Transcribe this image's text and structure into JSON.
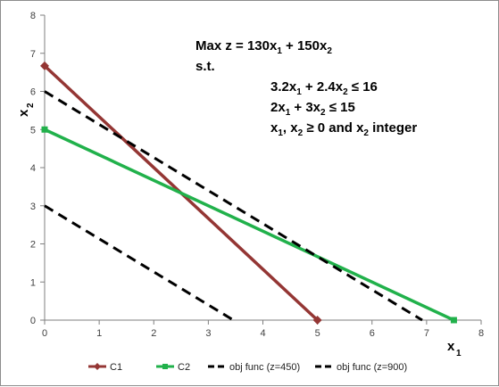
{
  "chart_data": {
    "type": "line",
    "xlim": [
      0,
      8
    ],
    "ylim": [
      0,
      8
    ],
    "x_ticks": [
      0,
      1,
      2,
      3,
      4,
      5,
      6,
      7,
      8
    ],
    "y_ticks": [
      0,
      1,
      2,
      3,
      4,
      5,
      6,
      7,
      8
    ],
    "xlabel": {
      "main": "x",
      "sub": "1"
    },
    "ylabel": {
      "main": "x",
      "sub": "2"
    },
    "grid": false,
    "legend_position": "bottom",
    "series": [
      {
        "name": "C1",
        "color": "#943634",
        "style": "solid",
        "marker": "diamond",
        "points": [
          [
            0,
            6.67
          ],
          [
            5,
            0
          ]
        ]
      },
      {
        "name": "C2",
        "color": "#21b14b",
        "style": "solid",
        "marker": "square",
        "points": [
          [
            0,
            5
          ],
          [
            7.5,
            0
          ]
        ]
      },
      {
        "name": "obj func (z=450)",
        "color": "#000000",
        "style": "dashed",
        "marker": "none",
        "points": [
          [
            0,
            3
          ],
          [
            3.46,
            0
          ]
        ]
      },
      {
        "name": "obj func (z=900)",
        "color": "#000000",
        "style": "dashed",
        "marker": "none",
        "points": [
          [
            0,
            6
          ],
          [
            6.92,
            0
          ]
        ]
      }
    ],
    "annotation_lines": [
      [
        {
          "t": "Max z = 130x"
        },
        {
          "t": "1",
          "sub": true
        },
        {
          "t": " + 150x"
        },
        {
          "t": "2",
          "sub": true
        }
      ],
      [
        {
          "t": "s.t."
        }
      ],
      [
        {
          "t": "3.2x"
        },
        {
          "t": "1",
          "sub": true
        },
        {
          "t": " + 2.4x"
        },
        {
          "t": "2",
          "sub": true
        },
        {
          "t": " ≤ 16"
        }
      ],
      [
        {
          "t": "2x"
        },
        {
          "t": "1",
          "sub": true
        },
        {
          "t": " + 3x"
        },
        {
          "t": "2",
          "sub": true
        },
        {
          "t": " ≤ 15"
        }
      ],
      [
        {
          "t": "x"
        },
        {
          "t": "1",
          "sub": true
        },
        {
          "t": ", x"
        },
        {
          "t": "2",
          "sub": true
        },
        {
          "t": " ≥ 0 and x"
        },
        {
          "t": "2",
          "sub": true
        },
        {
          "t": " integer"
        }
      ]
    ]
  }
}
